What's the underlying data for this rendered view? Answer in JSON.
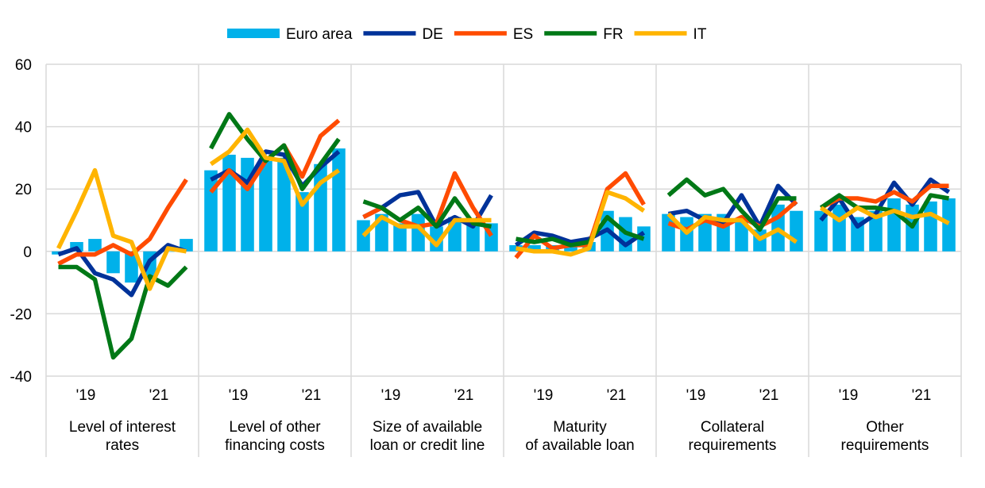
{
  "chart_data": {
    "type": "bar+line",
    "title": "",
    "ylim": [
      -40,
      60
    ],
    "yticks": [
      -40,
      -20,
      0,
      20,
      40,
      60
    ],
    "grid": true,
    "legend_position": "top-center",
    "legend": [
      {
        "name": "Euro area",
        "kind": "bar",
        "color": "#00b1ea"
      },
      {
        "name": "DE",
        "kind": "line",
        "color": "#003299"
      },
      {
        "name": "ES",
        "kind": "line",
        "color": "#ff4b00"
      },
      {
        "name": "FR",
        "kind": "line",
        "color": "#007816"
      },
      {
        "name": "IT",
        "kind": "line",
        "color": "#ffb400"
      }
    ],
    "year_ticks": [
      "'19",
      "'21"
    ],
    "panels": [
      {
        "label_lines": [
          "Level of interest",
          "rates"
        ],
        "euro_area": [
          -1,
          3,
          4,
          -7,
          -10,
          -9,
          0,
          4
        ],
        "DE": [
          -1,
          1,
          -7,
          -9,
          -14,
          -3,
          2,
          0
        ],
        "ES": [
          -4,
          -1,
          -1,
          2,
          -1,
          4,
          14,
          23
        ],
        "FR": [
          -5,
          -5,
          -9,
          -34,
          -28,
          -8,
          -11,
          -5
        ],
        "IT": [
          1,
          13,
          26,
          5,
          3,
          -12,
          1,
          0
        ]
      },
      {
        "label_lines": [
          "Level of other",
          "financing costs"
        ],
        "euro_area": [
          26,
          31,
          30,
          29,
          30,
          19,
          28,
          33
        ],
        "DE": [
          23,
          26,
          22,
          32,
          31,
          21,
          27,
          32
        ],
        "ES": [
          19,
          26,
          20,
          29,
          34,
          24,
          37,
          42
        ],
        "FR": [
          33,
          44,
          36,
          29,
          34,
          20,
          28,
          36
        ],
        "IT": [
          28,
          32,
          39,
          30,
          29,
          15,
          22,
          26
        ]
      },
      {
        "label_lines": [
          "Size of available",
          "loan or credit line"
        ],
        "euro_area": [
          10,
          12,
          9,
          12,
          8,
          11,
          9,
          9
        ],
        "DE": [
          11,
          14,
          18,
          19,
          8,
          11,
          8,
          18
        ],
        "ES": [
          11,
          14,
          10,
          8,
          9,
          25,
          14,
          5
        ],
        "FR": [
          16,
          14,
          10,
          14,
          8,
          17,
          9,
          8
        ],
        "IT": [
          5,
          11,
          8,
          8,
          2,
          10,
          10,
          10
        ]
      },
      {
        "label_lines": [
          "Maturity",
          "of available loan"
        ],
        "euro_area": [
          2,
          2,
          2,
          2,
          3,
          13,
          11,
          8
        ],
        "DE": [
          2,
          6,
          5,
          3,
          4,
          7,
          2,
          6
        ],
        "ES": [
          -2,
          5,
          1,
          2,
          2,
          20,
          25,
          15
        ],
        "FR": [
          4,
          3,
          4,
          2,
          3,
          11,
          6,
          4
        ],
        "IT": [
          1,
          0,
          0,
          -1,
          1,
          19,
          17,
          13
        ]
      },
      {
        "label_lines": [
          "Collateral",
          "requirements"
        ],
        "euro_area": [
          12,
          11,
          12,
          12,
          10,
          7,
          15,
          13
        ],
        "DE": [
          12,
          13,
          10,
          9,
          18,
          8,
          21,
          15
        ],
        "ES": [
          9,
          7,
          10,
          8,
          11,
          8,
          11,
          16
        ],
        "FR": [
          18,
          23,
          18,
          20,
          13,
          7,
          17,
          17
        ],
        "IT": [
          12,
          6,
          11,
          10,
          10,
          4,
          7,
          3
        ]
      },
      {
        "label_lines": [
          "Other",
          "requirements"
        ],
        "euro_area": [
          13,
          15,
          11,
          13,
          17,
          15,
          16,
          17
        ],
        "DE": [
          10,
          17,
          8,
          12,
          22,
          15,
          23,
          19
        ],
        "ES": [
          14,
          17,
          17,
          16,
          19,
          16,
          21,
          21
        ],
        "FR": [
          14,
          18,
          14,
          14,
          13,
          8,
          18,
          17
        ],
        "IT": [
          14,
          10,
          14,
          11,
          13,
          11,
          12,
          9
        ]
      }
    ]
  }
}
